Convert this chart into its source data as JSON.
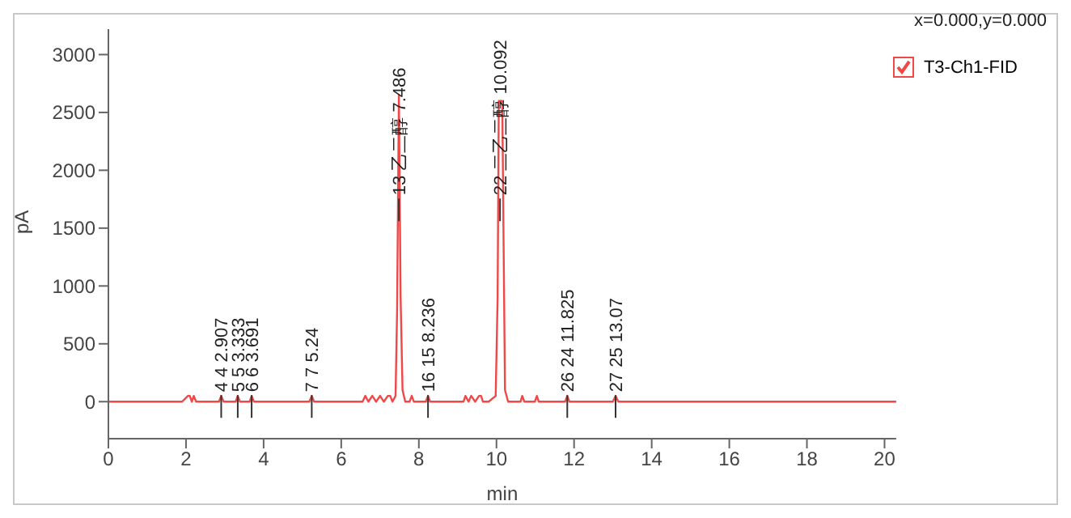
{
  "chart_data": {
    "type": "line",
    "xlabel": "min",
    "ylabel": "pA",
    "x": [
      0,
      1.9,
      2.05,
      2.098,
      2.15,
      2.2,
      2.26,
      2.4,
      2.85,
      2.907,
      2.97,
      3.28,
      3.333,
      3.39,
      3.64,
      3.691,
      3.75,
      5.18,
      5.24,
      5.3,
      6.55,
      6.62,
      6.7,
      6.8,
      6.9,
      7.0,
      7.1,
      7.2,
      7.262,
      7.32,
      7.4,
      7.44,
      7.486,
      7.53,
      7.58,
      7.65,
      7.76,
      7.817,
      7.87,
      8.18,
      8.236,
      8.29,
      9.15,
      9.2,
      9.28,
      9.35,
      9.45,
      9.55,
      9.605,
      9.65,
      9.8,
      9.98,
      10.03,
      10.06,
      10.092,
      10.15,
      10.18,
      10.22,
      10.3,
      10.62,
      10.664,
      10.72,
      10.99,
      11.041,
      11.09,
      11.77,
      11.825,
      11.88,
      13.0,
      13.07,
      13.14,
      20.3
    ],
    "series": [
      {
        "name": "T3-Ch1-FID",
        "color": "#f04848",
        "values": [
          0,
          0,
          50,
          50,
          0,
          50,
          0,
          0,
          0,
          50,
          0,
          0,
          50,
          0,
          0,
          50,
          0,
          0,
          50,
          0,
          0,
          50,
          0,
          50,
          0,
          50,
          0,
          50,
          50,
          0,
          50,
          800,
          2650,
          900,
          100,
          0,
          0,
          50,
          0,
          0,
          50,
          0,
          0,
          50,
          0,
          50,
          0,
          50,
          50,
          0,
          0,
          50,
          900,
          2600,
          2600,
          2600,
          1500,
          100,
          0,
          0,
          50,
          0,
          0,
          50,
          0,
          0,
          50,
          0,
          0,
          50,
          0,
          0
        ]
      }
    ],
    "xlim": [
      0,
      20.3
    ],
    "xticks": [
      0,
      2,
      4,
      6,
      8,
      10,
      12,
      14,
      16,
      18,
      20
    ],
    "ylim": [
      -320,
      3220
    ],
    "yticks": [
      0,
      500,
      1000,
      1500,
      2000,
      2500,
      3000
    ],
    "legend": "top right",
    "marker": "none",
    "line_style": "solid",
    "annotations": [
      "x=0.000,y=0.000",
      {
        "text": "4 4 2.907",
        "x": 2.907,
        "y": 0
      },
      {
        "text": "5 5 3.333",
        "x": 3.333,
        "y": 0
      },
      {
        "text": "6 6 3.691",
        "x": 3.691,
        "y": 0
      },
      {
        "text": "7 7 5.24",
        "x": 5.24,
        "y": 0
      },
      {
        "text": "13 乙二醇 7.486",
        "x": 7.486,
        "y": 1700
      },
      {
        "text": "16 15 8.236",
        "x": 8.236,
        "y": 0
      },
      {
        "text": "22 二乙二醇 10.092",
        "x": 10.092,
        "y": 1700
      },
      {
        "text": "26 24 11.825",
        "x": 11.825,
        "y": 0
      },
      {
        "text": "27 25 13.07",
        "x": 13.07,
        "y": 0
      }
    ]
  }
}
